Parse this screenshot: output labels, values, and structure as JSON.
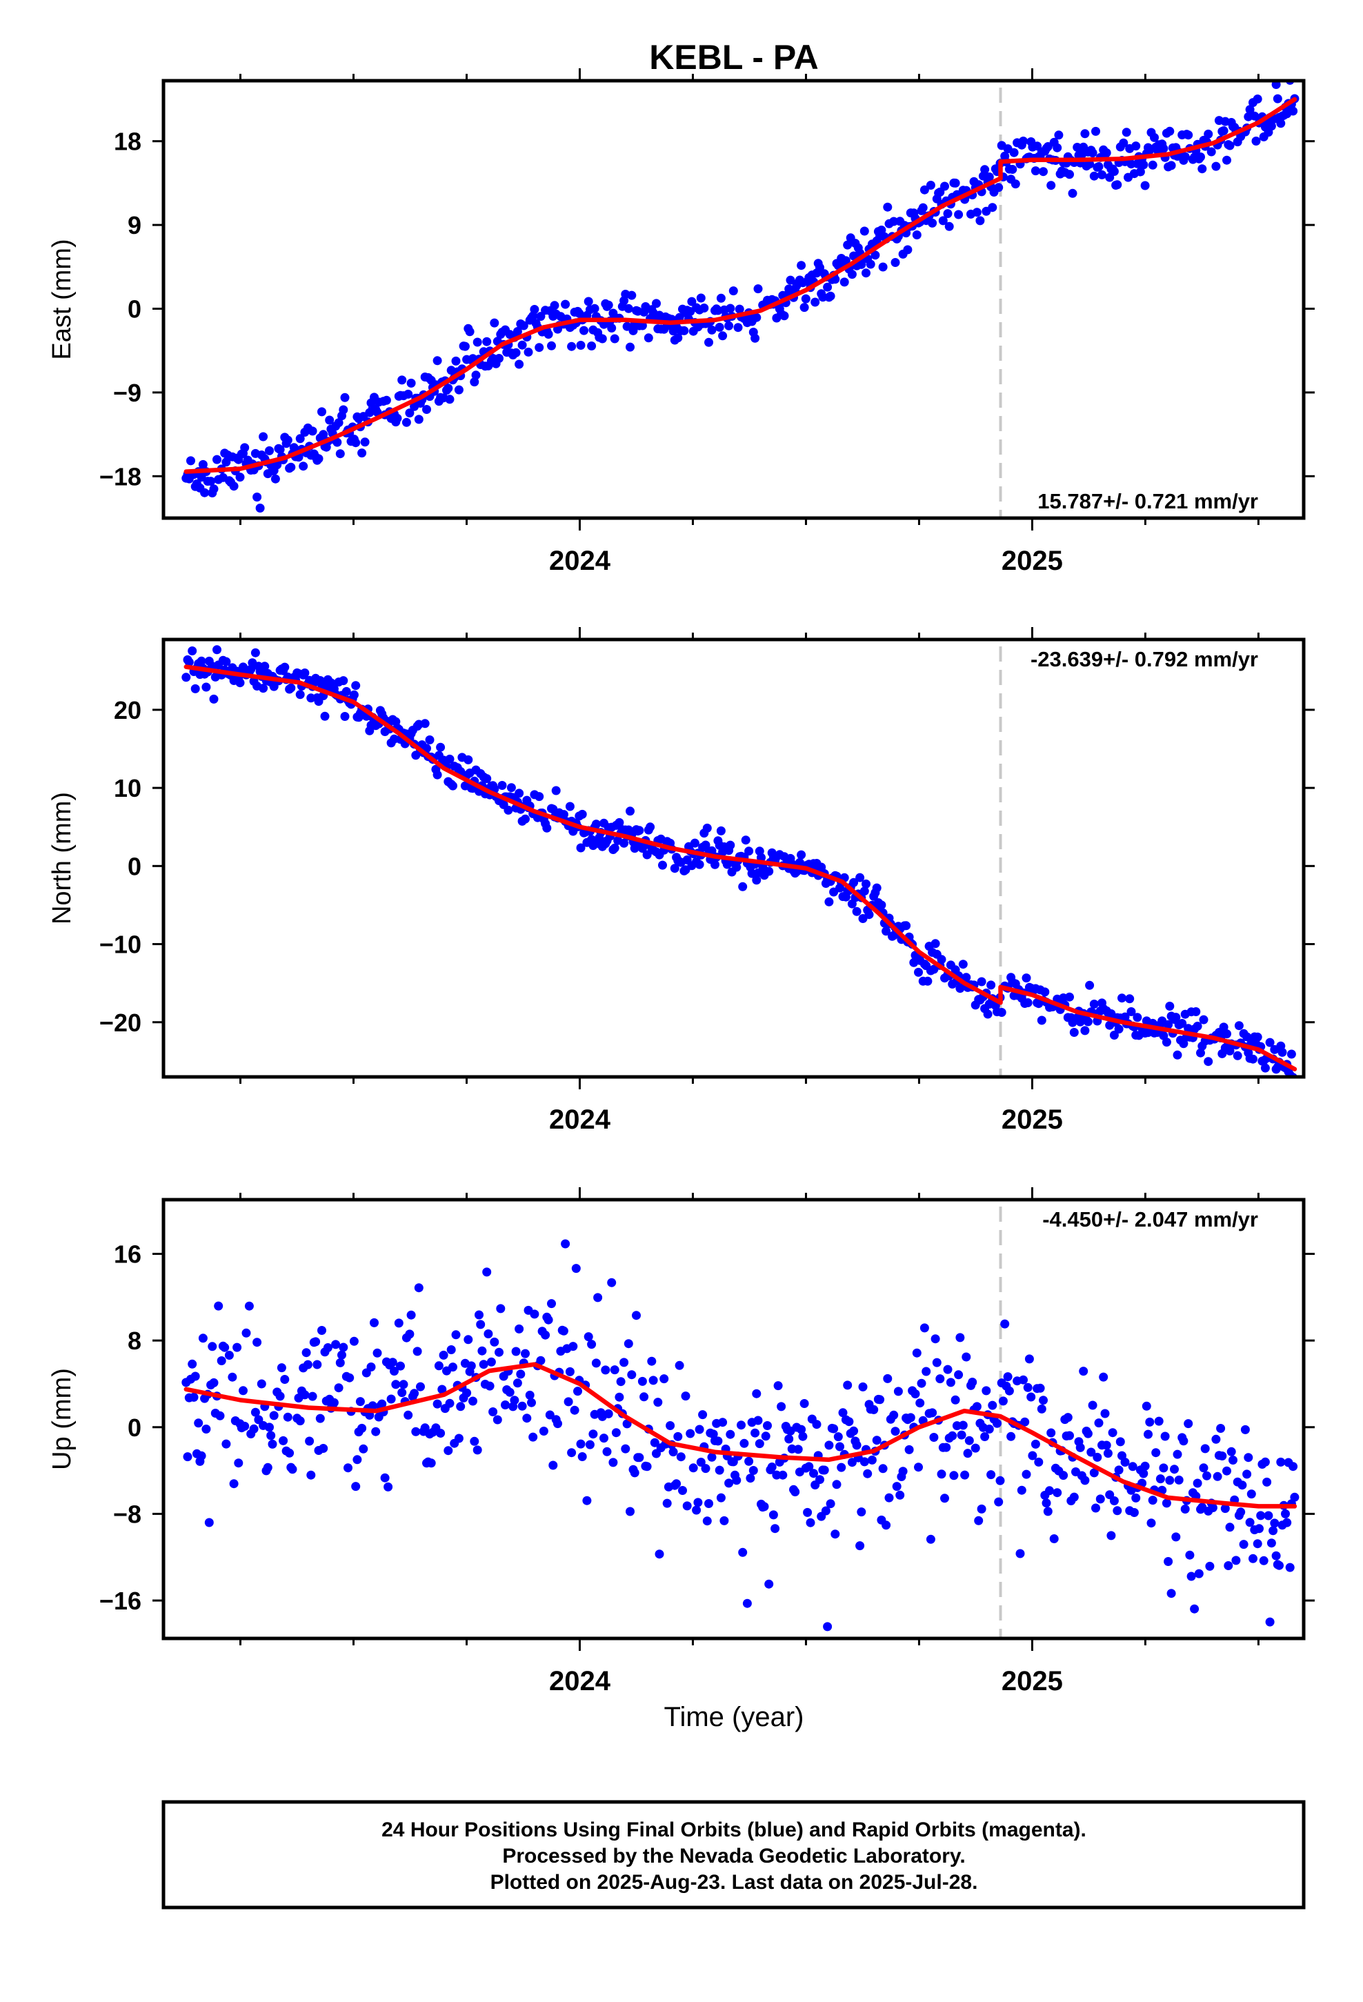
{
  "figure": {
    "title": "KEBL - PA",
    "xlabel": "Time (year)",
    "footer": {
      "line1": "24 Hour Positions Using Final Orbits (blue) and Rapid Orbits (magenta).",
      "line2": "Processed by the Nevada Geodetic Laboratory.",
      "line3": "Plotted on 2025-Aug-23. Last data on 2025-Jul-28."
    }
  },
  "colors": {
    "points": "#0000ff",
    "model": "#ff0000",
    "marker_line": "#c8c8c8",
    "frame": "#000000"
  },
  "chart_data": [
    {
      "type": "scatter",
      "ylabel": "East (mm)",
      "rate_label": "15.787+/- 0.721 mm/yr",
      "xlim": [
        2023.08,
        2025.6
      ],
      "ylim": [
        -22.5,
        24.5
      ],
      "yticks": [
        -18,
        -9,
        0,
        9,
        18
      ],
      "ytick_labels": [
        "−18",
        "−9",
        "0",
        "9",
        "18"
      ],
      "xticks": [
        2024,
        2025
      ],
      "xtick_labels": [
        "2024",
        "2025"
      ],
      "minor_xticks": [
        2023.25,
        2023.5,
        2023.75,
        2024.25,
        2024.5,
        2024.75,
        2025.25,
        2025.5
      ],
      "equipment_change": 2024.93,
      "model": [
        [
          2023.13,
          -17.5
        ],
        [
          2023.25,
          -17.2
        ],
        [
          2023.35,
          -16.0
        ],
        [
          2023.45,
          -14.0
        ],
        [
          2023.55,
          -11.8
        ],
        [
          2023.65,
          -9.5
        ],
        [
          2023.75,
          -6.5
        ],
        [
          2023.83,
          -3.8
        ],
        [
          2023.92,
          -2.0
        ],
        [
          2024.0,
          -1.2
        ],
        [
          2024.1,
          -1.2
        ],
        [
          2024.2,
          -1.5
        ],
        [
          2024.3,
          -1.2
        ],
        [
          2024.4,
          -0.2
        ],
        [
          2024.5,
          2.0
        ],
        [
          2024.6,
          4.8
        ],
        [
          2024.7,
          8.0
        ],
        [
          2024.8,
          11.0
        ],
        [
          2024.93,
          14.0
        ],
        [
          2024.93,
          15.8
        ],
        [
          2025.0,
          16.0
        ],
        [
          2025.1,
          16.0
        ],
        [
          2025.2,
          16.1
        ],
        [
          2025.3,
          16.6
        ],
        [
          2025.4,
          17.8
        ],
        [
          2025.5,
          20.0
        ],
        [
          2025.58,
          22.5
        ]
      ],
      "series_seed": 11,
      "scatter_sigma": 1.3
    },
    {
      "type": "scatter",
      "ylabel": "North (mm)",
      "rate_label": "-23.639+/- 0.792 mm/yr",
      "xlim": [
        2023.08,
        2025.6
      ],
      "ylim": [
        -27,
        29
      ],
      "yticks": [
        -20,
        -10,
        0,
        10,
        20
      ],
      "ytick_labels": [
        "−20",
        "−10",
        "0",
        "10",
        "20"
      ],
      "xticks": [
        2024,
        2025
      ],
      "xtick_labels": [
        "2024",
        "2025"
      ],
      "minor_xticks": [
        2023.25,
        2023.5,
        2023.75,
        2024.25,
        2024.5,
        2024.75,
        2025.25,
        2025.5
      ],
      "equipment_change": 2024.93,
      "model": [
        [
          2023.13,
          25.5
        ],
        [
          2023.25,
          24.5
        ],
        [
          2023.38,
          23.5
        ],
        [
          2023.5,
          21.0
        ],
        [
          2023.6,
          17.0
        ],
        [
          2023.7,
          12.5
        ],
        [
          2023.8,
          9.5
        ],
        [
          2023.9,
          7.0
        ],
        [
          2024.0,
          5.0
        ],
        [
          2024.1,
          3.8
        ],
        [
          2024.2,
          2.3
        ],
        [
          2024.3,
          1.2
        ],
        [
          2024.4,
          0.5
        ],
        [
          2024.5,
          -0.3
        ],
        [
          2024.58,
          -2.0
        ],
        [
          2024.66,
          -6.0
        ],
        [
          2024.75,
          -11.0
        ],
        [
          2024.85,
          -15.0
        ],
        [
          2024.93,
          -17.5
        ],
        [
          2024.93,
          -15.5
        ],
        [
          2025.0,
          -16.5
        ],
        [
          2025.1,
          -18.7
        ],
        [
          2025.2,
          -20.0
        ],
        [
          2025.3,
          -21.0
        ],
        [
          2025.4,
          -22.0
        ],
        [
          2025.5,
          -23.5
        ],
        [
          2025.58,
          -26.0
        ]
      ],
      "series_seed": 23,
      "scatter_sigma": 1.2
    },
    {
      "type": "scatter",
      "ylabel": "Up (mm)",
      "rate_label": "-4.450+/- 2.047 mm/yr",
      "xlim": [
        2023.08,
        2025.6
      ],
      "ylim": [
        -19.5,
        21
      ],
      "yticks": [
        -16,
        -8,
        0,
        8,
        16
      ],
      "ytick_labels": [
        "−16",
        "−8",
        "0",
        "8",
        "16"
      ],
      "xticks": [
        2024,
        2025
      ],
      "xtick_labels": [
        "2024",
        "2025"
      ],
      "minor_xticks": [
        2023.25,
        2023.5,
        2023.75,
        2024.25,
        2024.5,
        2024.75,
        2025.25,
        2025.5
      ],
      "equipment_change": 2024.93,
      "model": [
        [
          2023.13,
          3.5
        ],
        [
          2023.25,
          2.5
        ],
        [
          2023.4,
          1.8
        ],
        [
          2023.55,
          1.5
        ],
        [
          2023.7,
          3.0
        ],
        [
          2023.8,
          5.2
        ],
        [
          2023.9,
          5.8
        ],
        [
          2024.0,
          4.0
        ],
        [
          2024.1,
          1.0
        ],
        [
          2024.2,
          -1.5
        ],
        [
          2024.3,
          -2.3
        ],
        [
          2024.45,
          -2.8
        ],
        [
          2024.55,
          -3.0
        ],
        [
          2024.65,
          -2.2
        ],
        [
          2024.75,
          0.0
        ],
        [
          2024.85,
          1.5
        ],
        [
          2024.93,
          1.0
        ],
        [
          2025.0,
          -0.5
        ],
        [
          2025.1,
          -2.8
        ],
        [
          2025.2,
          -5.0
        ],
        [
          2025.3,
          -6.5
        ],
        [
          2025.42,
          -7.0
        ],
        [
          2025.5,
          -7.3
        ],
        [
          2025.58,
          -7.3
        ]
      ],
      "series_seed": 37,
      "scatter_sigma": 4.2
    }
  ]
}
